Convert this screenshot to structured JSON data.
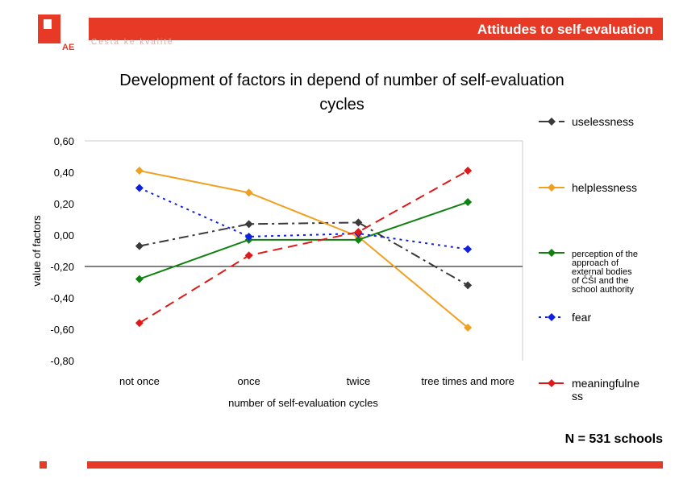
{
  "header": {
    "title": "Attitudes to self-evaluation",
    "tagline": "Cesta ke kvalitě",
    "logo_text": "AE"
  },
  "footnote": "N = 531 schools",
  "colors": {
    "brand": "#e63a26"
  },
  "chart_data": {
    "type": "line",
    "title_lines": [
      "Development of factors in depend of number of self-evaluation",
      "cycles"
    ],
    "xlabel": "number of self-evaluation cycles",
    "ylabel": "value of factors",
    "categories": [
      "not once",
      "once",
      "twice",
      "tree times and more"
    ],
    "ylim": [
      -0.8,
      0.6
    ],
    "yticks": [
      "0,60",
      "0,40",
      "0,20",
      "0,00",
      "-0,20",
      "-0,40",
      "-0,60",
      "-0,80"
    ],
    "legend_position": "right",
    "series": [
      {
        "name": "uselessness",
        "values": [
          -0.07,
          0.07,
          0.08,
          -0.32
        ],
        "color": "#3a3a3a",
        "dash": "dashdot"
      },
      {
        "name": "helplessness",
        "values": [
          0.41,
          0.27,
          -0.01,
          -0.59
        ],
        "color": "#f0a020",
        "dash": "solid"
      },
      {
        "name": "perception of the approach of external bodies of ČŠI and the school authority",
        "values": [
          -0.28,
          -0.03,
          -0.03,
          0.21
        ],
        "color": "#108010",
        "dash": "solid"
      },
      {
        "name": "fear",
        "values": [
          0.3,
          -0.01,
          0.01,
          -0.09
        ],
        "color": "#1020e0",
        "dash": "dot"
      },
      {
        "name": "meaningfulness",
        "values": [
          -0.56,
          -0.13,
          0.02,
          0.41
        ],
        "color": "#e01818",
        "dash": "dash"
      }
    ]
  }
}
